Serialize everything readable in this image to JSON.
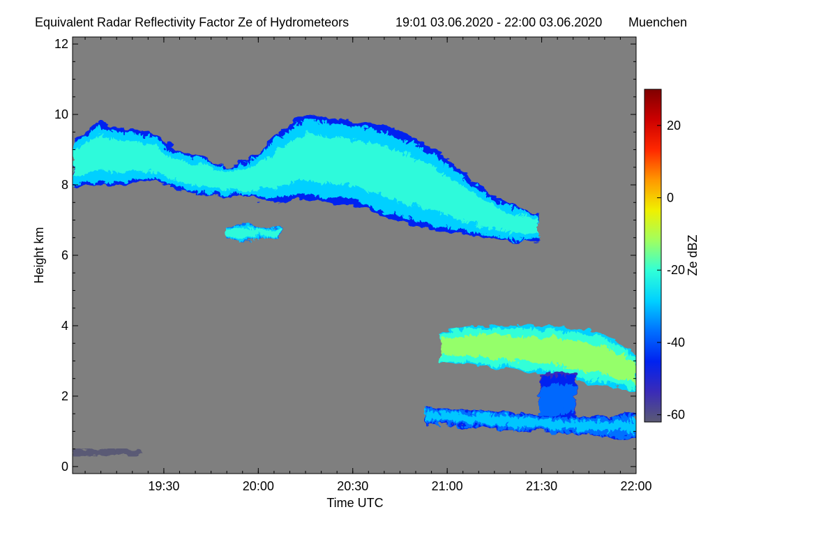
{
  "chart_data": {
    "type": "heatmap",
    "title": "Equivalent Radar Reflectivity Factor Ze of Hydrometeors",
    "time_range_label": "19:01 03.06.2020 - 22:00 03.06.2020",
    "location": "Muenchen",
    "xlabel": "Time UTC",
    "ylabel": "Height km",
    "x_range_minutes": [
      0,
      179
    ],
    "x_ticks": [
      {
        "label": "19:30",
        "minute": 29
      },
      {
        "label": "20:00",
        "minute": 59
      },
      {
        "label": "20:30",
        "minute": 89
      },
      {
        "label": "21:00",
        "minute": 119
      },
      {
        "label": "21:30",
        "minute": 149
      },
      {
        "label": "22:00",
        "minute": 179
      }
    ],
    "ylim": [
      -0.2,
      12.2
    ],
    "y_ticks": [
      0,
      2,
      4,
      6,
      8,
      10,
      12
    ],
    "colorbar": {
      "label": "Ze dBZ",
      "range": [
        -62,
        30
      ],
      "ticks": [
        -60,
        -40,
        -20,
        0,
        20
      ]
    },
    "colors": {
      "background": "#7f7f7f",
      "colormap": [
        "#5a5a74",
        "#3a2bb8",
        "#0022f0",
        "#0070ff",
        "#00d0ff",
        "#30ffd8",
        "#a0ff60",
        "#f0f000",
        "#ff9800",
        "#ff2800",
        "#cc0000",
        "#800000"
      ]
    },
    "echo_regions": [
      {
        "name": "upper-cloud-layer",
        "start_min": 0,
        "end_min": 148,
        "top_km": [
          9.3,
          9.8,
          9.6,
          9.5,
          9.0,
          8.8,
          8.5,
          8.8,
          9.5,
          10.0,
          9.9,
          9.8,
          9.7,
          9.4,
          9.0,
          8.4,
          7.8,
          7.4,
          7.2
        ],
        "base_km": [
          7.9,
          8.0,
          8.0,
          8.1,
          7.9,
          7.7,
          7.7,
          7.6,
          7.5,
          7.6,
          7.5,
          7.4,
          7.1,
          6.9,
          6.7,
          6.6,
          6.5,
          6.4,
          6.4
        ],
        "core_dbz": -22
      },
      {
        "name": "small-cloud-patch",
        "start_min": 49,
        "end_min": 66,
        "top_km": [
          6.8,
          6.9,
          6.8,
          6.8
        ],
        "base_km": [
          6.5,
          6.4,
          6.5,
          6.5
        ],
        "core_dbz": -20
      },
      {
        "name": "lower-cloud-layer",
        "start_min": 117,
        "end_min": 179,
        "top_km": [
          3.8,
          4.0,
          4.0,
          4.0,
          4.0,
          3.9,
          3.7,
          3.2
        ],
        "base_km": [
          3.0,
          2.9,
          2.8,
          2.7,
          2.6,
          2.4,
          2.3,
          2.1
        ],
        "core_dbz": -12
      },
      {
        "name": "precipitation-streaks",
        "start_min": 148,
        "end_min": 160,
        "top_km": [
          2.6,
          2.7,
          2.6
        ],
        "base_km": [
          1.0,
          1.1,
          1.3
        ],
        "core_dbz": -35
      },
      {
        "name": "near-ground-clutter",
        "start_min": 0,
        "end_min": 22,
        "top_km": [
          0.5,
          0.5,
          0.5
        ],
        "base_km": [
          0.3,
          0.3,
          0.3
        ],
        "core_dbz": -58
      },
      {
        "name": "low-level-echoes",
        "start_min": 112,
        "end_min": 179,
        "top_km": [
          1.7,
          1.6,
          1.5,
          1.4,
          1.5
        ],
        "base_km": [
          1.2,
          1.1,
          1.0,
          0.9,
          0.8
        ],
        "core_dbz": -25
      }
    ]
  }
}
